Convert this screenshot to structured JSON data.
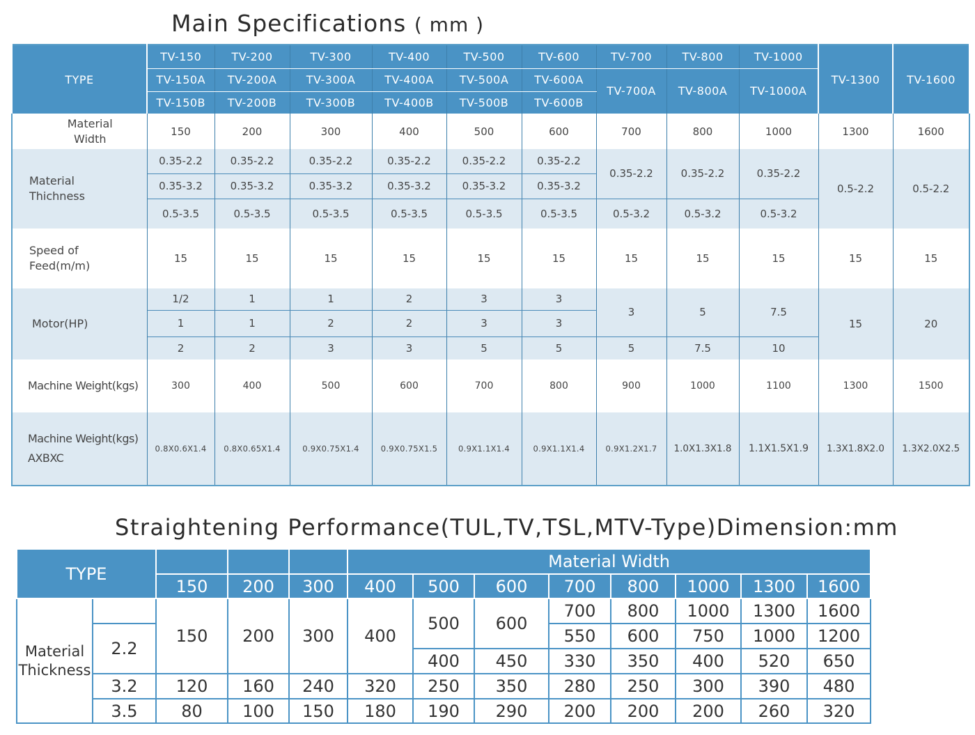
{
  "title1": {
    "main": "Main Specifications",
    "unit": "( mm )"
  },
  "table1": {
    "type_label": "TYPE",
    "models_row1": [
      "TV-150",
      "TV-200",
      "TV-300",
      "TV-400",
      "TV-500",
      "TV-600",
      "TV-700",
      "TV-800",
      "TV-1000",
      "TV-1300",
      "TV-1600"
    ],
    "models_row2": [
      "TV-150A",
      "TV-200A",
      "TV-300A",
      "TV-400A",
      "TV-500A",
      "TV-600A",
      "TV-700A",
      "TV-800A",
      "TV-1000A"
    ],
    "models_row3": [
      "TV-150B",
      "TV-200B",
      "TV-300B",
      "TV-400B",
      "TV-500B",
      "TV-600B"
    ],
    "material_width_label_1": "Material",
    "material_width_label_2": "Width",
    "material_width": [
      "150",
      "200",
      "300",
      "400",
      "500",
      "600",
      "700",
      "800",
      "1000",
      "1300",
      "1600"
    ],
    "thickness_label_1": "Material",
    "thickness_label_2": "Thichness",
    "thickness_row1": [
      "0.35-2.2",
      "0.35-2.2",
      "0.35-2.2",
      "0.35-2.2",
      "0.35-2.2",
      "0.35-2.2"
    ],
    "thickness_row2": [
      "0.35-3.2",
      "0.35-3.2",
      "0.35-3.2",
      "0.35-3.2",
      "0.35-3.2",
      "0.35-3.2"
    ],
    "thickness_row3": [
      "0.5-3.5",
      "0.5-3.5",
      "0.5-3.5",
      "0.5-3.5",
      "0.5-3.5",
      "0.5-3.5"
    ],
    "thickness_big_a": [
      "0.35-2.2",
      "0.35-2.2",
      "0.35-2.2"
    ],
    "thickness_big_b": [
      "0.5-3.2",
      "0.5-3.2",
      "0.5-3.2"
    ],
    "thickness_large": [
      "0.5-2.2",
      "0.5-2.2"
    ],
    "speed_label_1": "Speed of",
    "speed_label_2": "Feed(m/m)",
    "speed": [
      "15",
      "15",
      "15",
      "15",
      "15",
      "15",
      "15",
      "15",
      "15",
      "15",
      "15"
    ],
    "motor_label": "Motor(HP)",
    "motor_row1": [
      "1/2",
      "1",
      "1",
      "2",
      "3",
      "3"
    ],
    "motor_row2": [
      "1",
      "1",
      "2",
      "2",
      "3",
      "3"
    ],
    "motor_row3": [
      "2",
      "2",
      "3",
      "3",
      "5",
      "5"
    ],
    "motor_big_a": [
      "3",
      "5",
      "7.5"
    ],
    "motor_big_b": [
      "5",
      "7.5",
      "10"
    ],
    "motor_large": [
      "15",
      "20"
    ],
    "weight_label": "Machine Weight(kgs)",
    "weight": [
      "300",
      "400",
      "500",
      "600",
      "700",
      "800",
      "900",
      "1000",
      "1100",
      "1300",
      "1500"
    ],
    "dim_label_1": "Machine Weight(kgs)",
    "dim_label_2": "AXBXC",
    "dims": [
      "0.8X0.6X1.4",
      "0.8X0.65X1.4",
      "0.9X0.75X1.4",
      "0.9X0.75X1.5",
      "0.9X1.1X1.4",
      "0.9X1.1X1.4",
      "0.9X1.2X1.7",
      "1.0X1.3X1.8",
      "1.1X1.5X1.9",
      "1.3X1.8X2.0",
      "1.3X2.0X2.5"
    ]
  },
  "title2": "Straightening Performance(TUL,TV,TSL,MTV-Type)Dimension:mm",
  "table2": {
    "type_label": "TYPE",
    "material_width_label": "Material  Width",
    "widths": [
      "150",
      "200",
      "300",
      "400",
      "500",
      "600",
      "700",
      "800",
      "1000",
      "1300",
      "1600"
    ],
    "thickness_label_1": "Material",
    "thickness_label_2": "Thickness",
    "thicknesses": [
      "2.2",
      "3.2",
      "3.5"
    ],
    "r22_small": [
      "150",
      "200",
      "300",
      "400"
    ],
    "r22_500_600_a": [
      "500",
      "600"
    ],
    "r22_500_600_b": [
      "400",
      "450"
    ],
    "r22_big_1": [
      "700",
      "800",
      "1000",
      "1300",
      "1600"
    ],
    "r22_big_2": [
      "550",
      "600",
      "750",
      "1000",
      "1200"
    ],
    "r22_big_3": [
      "330",
      "350",
      "400",
      "520",
      "650"
    ],
    "r32": [
      "120",
      "160",
      "240",
      "320",
      "250",
      "350",
      "280",
      "250",
      "300",
      "390",
      "480"
    ],
    "r35": [
      "80",
      "100",
      "150",
      "180",
      "190",
      "290",
      "200",
      "200",
      "200",
      "260",
      "320"
    ]
  }
}
